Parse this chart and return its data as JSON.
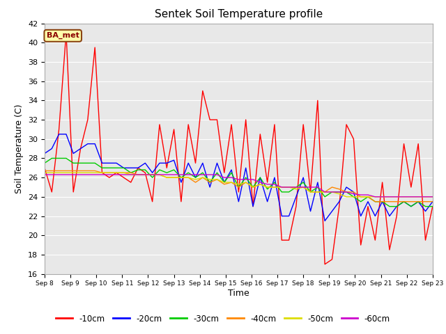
{
  "title": "Sentek Soil Temperature profile",
  "xlabel": "Time",
  "ylabel": "Soil Temperature (C)",
  "ylim": [
    16,
    42
  ],
  "yticks": [
    16,
    18,
    20,
    22,
    24,
    26,
    28,
    30,
    32,
    34,
    36,
    38,
    40,
    42
  ],
  "label_text": "BA_met",
  "bg_color": "#e8e8e8",
  "fig_color": "#ffffff",
  "grid_color": "#ffffff",
  "series": {
    "-10cm": {
      "color": "#ff0000",
      "data": [
        27.0,
        24.5,
        31.0,
        41.0,
        24.5,
        29.0,
        32.0,
        39.5,
        26.5,
        26.0,
        26.5,
        26.0,
        25.5,
        27.0,
        26.5,
        23.5,
        31.5,
        27.0,
        31.0,
        23.5,
        31.5,
        27.5,
        35.0,
        32.0,
        32.0,
        26.5,
        31.5,
        24.5,
        32.0,
        23.0,
        30.5,
        25.5,
        31.5,
        19.5,
        19.5,
        23.0,
        31.5,
        24.5,
        34.0,
        17.0,
        17.5,
        23.0,
        31.5,
        30.0,
        19.0,
        23.0,
        19.5,
        25.5,
        18.5,
        22.0,
        29.5,
        25.0,
        29.5,
        19.5,
        23.0
      ]
    },
    "-20cm": {
      "color": "#0000ff",
      "data": [
        28.5,
        29.0,
        30.5,
        30.5,
        28.5,
        29.0,
        29.5,
        29.5,
        27.5,
        27.5,
        27.5,
        27.0,
        27.0,
        27.0,
        27.5,
        26.5,
        27.5,
        27.5,
        27.8,
        25.5,
        27.5,
        26.0,
        27.5,
        25.0,
        27.5,
        25.5,
        26.8,
        23.5,
        27.0,
        23.0,
        26.0,
        23.5,
        26.0,
        22.0,
        22.0,
        24.0,
        26.0,
        22.5,
        25.5,
        21.5,
        22.5,
        23.5,
        25.0,
        24.5,
        22.0,
        23.5,
        22.0,
        23.5,
        22.0,
        23.0,
        23.5,
        23.0,
        23.5,
        22.5,
        23.5
      ]
    },
    "-30cm": {
      "color": "#00cc00",
      "data": [
        27.5,
        28.0,
        28.0,
        28.0,
        27.5,
        27.5,
        27.5,
        27.5,
        27.0,
        27.0,
        27.0,
        27.0,
        26.5,
        26.8,
        26.8,
        26.0,
        26.8,
        26.5,
        26.8,
        26.0,
        26.5,
        26.0,
        26.5,
        25.5,
        26.5,
        25.5,
        26.5,
        25.0,
        26.0,
        25.0,
        26.0,
        24.8,
        25.5,
        24.5,
        24.5,
        25.0,
        25.5,
        24.5,
        25.0,
        24.0,
        24.5,
        24.5,
        24.5,
        24.0,
        23.5,
        24.0,
        23.5,
        23.5,
        23.0,
        23.0,
        23.5,
        23.0,
        23.5,
        23.0,
        23.0
      ]
    },
    "-40cm": {
      "color": "#ff8800",
      "data": [
        26.7,
        26.7,
        26.7,
        26.7,
        26.7,
        26.7,
        26.7,
        26.7,
        26.5,
        26.5,
        26.5,
        26.5,
        26.5,
        26.3,
        26.3,
        26.3,
        26.3,
        26.0,
        26.0,
        26.0,
        26.0,
        25.5,
        26.0,
        25.5,
        25.8,
        25.3,
        25.5,
        25.0,
        25.5,
        25.0,
        25.3,
        25.0,
        25.0,
        25.0,
        25.0,
        25.0,
        25.0,
        24.5,
        24.5,
        24.5,
        25.0,
        24.8,
        24.5,
        24.5,
        24.0,
        24.0,
        23.5,
        23.5,
        23.5,
        23.5,
        23.5,
        23.5,
        23.5,
        23.5,
        23.5
      ]
    },
    "-50cm": {
      "color": "#dddd00",
      "data": [
        26.5,
        26.5,
        26.5,
        26.5,
        26.5,
        26.5,
        26.5,
        26.5,
        26.5,
        26.5,
        26.5,
        26.5,
        26.3,
        26.3,
        26.3,
        26.3,
        26.3,
        26.0,
        26.0,
        26.0,
        26.0,
        25.8,
        26.0,
        25.8,
        25.8,
        25.5,
        25.5,
        25.3,
        25.5,
        25.0,
        25.3,
        25.0,
        25.0,
        25.0,
        25.0,
        24.8,
        25.0,
        24.5,
        24.5,
        24.5,
        24.5,
        24.3,
        24.0,
        24.0,
        24.0,
        24.0,
        24.0,
        24.0,
        24.0,
        24.0,
        24.0,
        24.0,
        24.0,
        24.0,
        24.0
      ]
    },
    "-60cm": {
      "color": "#cc00cc",
      "data": [
        26.3,
        26.3,
        26.3,
        26.3,
        26.3,
        26.3,
        26.3,
        26.3,
        26.3,
        26.3,
        26.3,
        26.3,
        26.3,
        26.3,
        26.3,
        26.3,
        26.3,
        26.3,
        26.3,
        26.3,
        26.3,
        26.3,
        26.3,
        26.3,
        26.3,
        26.0,
        26.0,
        25.8,
        25.8,
        25.8,
        25.5,
        25.3,
        25.3,
        25.0,
        25.0,
        25.0,
        25.0,
        25.0,
        25.0,
        24.5,
        24.5,
        24.5,
        24.5,
        24.3,
        24.2,
        24.2,
        24.0,
        24.0,
        24.0,
        24.0,
        24.0,
        24.0,
        24.0,
        24.0,
        24.0
      ]
    }
  },
  "n_points": 55,
  "xtick_labels": [
    "Sep 8",
    "Sep 9",
    "Sep 10",
    "Sep 11",
    "Sep 12",
    "Sep 13",
    "Sep 14",
    "Sep 15",
    "Sep 16",
    "Sep 17",
    "Sep 18",
    "Sep 19",
    "Sep 20",
    "Sep 21",
    "Sep 22",
    "Sep 23"
  ],
  "legend_labels": [
    "-10cm",
    "-20cm",
    "-30cm",
    "-40cm",
    "-50cm",
    "-60cm"
  ]
}
